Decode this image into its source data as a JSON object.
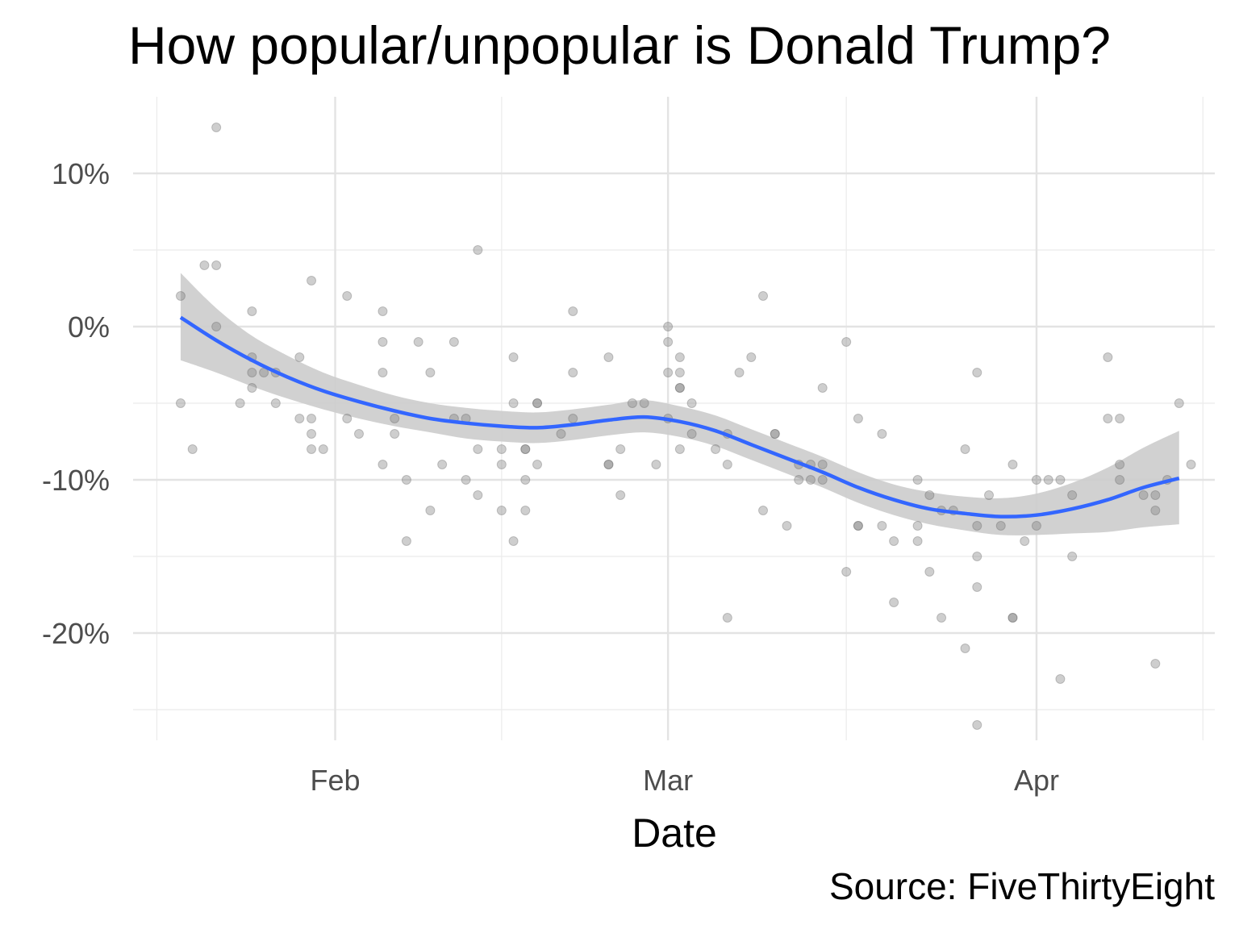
{
  "chart_data": {
    "type": "scatter",
    "title": "How popular/unpopular is Donald Trump?",
    "xlabel": "Date",
    "ylabel": "",
    "caption": "Source: FiveThirtyEight",
    "x_ticks": [
      {
        "label": "Feb",
        "date": "2017-02-01"
      },
      {
        "label": "Mar",
        "date": "2017-03-01"
      },
      {
        "label": "Apr",
        "date": "2017-04-01"
      }
    ],
    "x_minor_ticks": [
      "2017-01-17",
      "2017-02-15",
      "2017-03-16",
      "2017-04-15"
    ],
    "y_ticks": [
      {
        "label": "10%",
        "value": 10
      },
      {
        "label": "0%",
        "value": 0
      },
      {
        "label": "-10%",
        "value": -10
      },
      {
        "label": "-20%",
        "value": -20
      }
    ],
    "y_minor_ticks": [
      5,
      -5,
      -15,
      -25
    ],
    "xlim": [
      "2017-01-15",
      "2017-04-16"
    ],
    "ylim": [
      -27,
      15
    ],
    "grid": true,
    "point_color": "#7f7f7f",
    "smooth_color": "#3366ff",
    "ribbon_color": "#cccccc",
    "series": [
      {
        "kind": "points",
        "points": [
          {
            "x": "2017-01-19",
            "y": 2
          },
          {
            "x": "2017-01-19",
            "y": -5
          },
          {
            "x": "2017-01-20",
            "y": -8
          },
          {
            "x": "2017-01-21",
            "y": 4
          },
          {
            "x": "2017-01-22",
            "y": 13
          },
          {
            "x": "2017-01-22",
            "y": 4
          },
          {
            "x": "2017-01-22",
            "y": 0
          },
          {
            "x": "2017-01-24",
            "y": -5
          },
          {
            "x": "2017-01-25",
            "y": 1
          },
          {
            "x": "2017-01-25",
            "y": -2
          },
          {
            "x": "2017-01-25",
            "y": -3
          },
          {
            "x": "2017-01-25",
            "y": -4
          },
          {
            "x": "2017-01-26",
            "y": -3
          },
          {
            "x": "2017-01-27",
            "y": -3
          },
          {
            "x": "2017-01-27",
            "y": -5
          },
          {
            "x": "2017-01-29",
            "y": -2
          },
          {
            "x": "2017-01-29",
            "y": -6
          },
          {
            "x": "2017-01-30",
            "y": 3
          },
          {
            "x": "2017-01-30",
            "y": -6
          },
          {
            "x": "2017-01-30",
            "y": -7
          },
          {
            "x": "2017-01-30",
            "y": -8
          },
          {
            "x": "2017-01-31",
            "y": -8
          },
          {
            "x": "2017-02-02",
            "y": 2
          },
          {
            "x": "2017-02-02",
            "y": -6
          },
          {
            "x": "2017-02-03",
            "y": -7
          },
          {
            "x": "2017-02-05",
            "y": 1
          },
          {
            "x": "2017-02-05",
            "y": -1
          },
          {
            "x": "2017-02-05",
            "y": -3
          },
          {
            "x": "2017-02-05",
            "y": -9
          },
          {
            "x": "2017-02-06",
            "y": -6
          },
          {
            "x": "2017-02-06",
            "y": -7
          },
          {
            "x": "2017-02-07",
            "y": -10
          },
          {
            "x": "2017-02-07",
            "y": -14
          },
          {
            "x": "2017-02-08",
            "y": -1
          },
          {
            "x": "2017-02-09",
            "y": -3
          },
          {
            "x": "2017-02-09",
            "y": -12
          },
          {
            "x": "2017-02-10",
            "y": -9
          },
          {
            "x": "2017-02-11",
            "y": -1
          },
          {
            "x": "2017-02-11",
            "y": -6
          },
          {
            "x": "2017-02-12",
            "y": -6
          },
          {
            "x": "2017-02-12",
            "y": -10
          },
          {
            "x": "2017-02-13",
            "y": 5
          },
          {
            "x": "2017-02-13",
            "y": -8
          },
          {
            "x": "2017-02-13",
            "y": -11
          },
          {
            "x": "2017-02-15",
            "y": -8
          },
          {
            "x": "2017-02-15",
            "y": -9
          },
          {
            "x": "2017-02-15",
            "y": -12
          },
          {
            "x": "2017-02-16",
            "y": -2
          },
          {
            "x": "2017-02-16",
            "y": -5
          },
          {
            "x": "2017-02-16",
            "y": -14
          },
          {
            "x": "2017-02-17",
            "y": -8
          },
          {
            "x": "2017-02-17",
            "y": -8
          },
          {
            "x": "2017-02-17",
            "y": -10
          },
          {
            "x": "2017-02-17",
            "y": -12
          },
          {
            "x": "2017-02-18",
            "y": -5
          },
          {
            "x": "2017-02-18",
            "y": -5
          },
          {
            "x": "2017-02-18",
            "y": -9
          },
          {
            "x": "2017-02-20",
            "y": -7
          },
          {
            "x": "2017-02-21",
            "y": 1
          },
          {
            "x": "2017-02-21",
            "y": -3
          },
          {
            "x": "2017-02-21",
            "y": -6
          },
          {
            "x": "2017-02-24",
            "y": -2
          },
          {
            "x": "2017-02-24",
            "y": -9
          },
          {
            "x": "2017-02-24",
            "y": -9
          },
          {
            "x": "2017-02-25",
            "y": -8
          },
          {
            "x": "2017-02-25",
            "y": -11
          },
          {
            "x": "2017-02-26",
            "y": -5
          },
          {
            "x": "2017-02-27",
            "y": -5
          },
          {
            "x": "2017-02-28",
            "y": -9
          },
          {
            "x": "2017-03-01",
            "y": 0
          },
          {
            "x": "2017-03-01",
            "y": -1
          },
          {
            "x": "2017-03-01",
            "y": -3
          },
          {
            "x": "2017-03-01",
            "y": -6
          },
          {
            "x": "2017-03-02",
            "y": -2
          },
          {
            "x": "2017-03-02",
            "y": -3
          },
          {
            "x": "2017-03-02",
            "y": -4
          },
          {
            "x": "2017-03-02",
            "y": -4
          },
          {
            "x": "2017-03-02",
            "y": -8
          },
          {
            "x": "2017-03-03",
            "y": -5
          },
          {
            "x": "2017-03-03",
            "y": -7
          },
          {
            "x": "2017-03-05",
            "y": -8
          },
          {
            "x": "2017-03-06",
            "y": -7
          },
          {
            "x": "2017-03-06",
            "y": -9
          },
          {
            "x": "2017-03-06",
            "y": -19
          },
          {
            "x": "2017-03-07",
            "y": -3
          },
          {
            "x": "2017-03-08",
            "y": -2
          },
          {
            "x": "2017-03-09",
            "y": 2
          },
          {
            "x": "2017-03-09",
            "y": -12
          },
          {
            "x": "2017-03-10",
            "y": -7
          },
          {
            "x": "2017-03-10",
            "y": -7
          },
          {
            "x": "2017-03-11",
            "y": -13
          },
          {
            "x": "2017-03-12",
            "y": -9
          },
          {
            "x": "2017-03-12",
            "y": -10
          },
          {
            "x": "2017-03-13",
            "y": -9
          },
          {
            "x": "2017-03-13",
            "y": -10
          },
          {
            "x": "2017-03-14",
            "y": -4
          },
          {
            "x": "2017-03-14",
            "y": -9
          },
          {
            "x": "2017-03-14",
            "y": -10
          },
          {
            "x": "2017-03-16",
            "y": -1
          },
          {
            "x": "2017-03-16",
            "y": -16
          },
          {
            "x": "2017-03-17",
            "y": -6
          },
          {
            "x": "2017-03-17",
            "y": -13
          },
          {
            "x": "2017-03-17",
            "y": -13
          },
          {
            "x": "2017-03-19",
            "y": -7
          },
          {
            "x": "2017-03-19",
            "y": -13
          },
          {
            "x": "2017-03-20",
            "y": -14
          },
          {
            "x": "2017-03-20",
            "y": -18
          },
          {
            "x": "2017-03-22",
            "y": -10
          },
          {
            "x": "2017-03-22",
            "y": -13
          },
          {
            "x": "2017-03-22",
            "y": -14
          },
          {
            "x": "2017-03-23",
            "y": -11
          },
          {
            "x": "2017-03-23",
            "y": -16
          },
          {
            "x": "2017-03-24",
            "y": -12
          },
          {
            "x": "2017-03-24",
            "y": -19
          },
          {
            "x": "2017-03-25",
            "y": -12
          },
          {
            "x": "2017-03-26",
            "y": -8
          },
          {
            "x": "2017-03-26",
            "y": -21
          },
          {
            "x": "2017-03-27",
            "y": -3
          },
          {
            "x": "2017-03-27",
            "y": -13
          },
          {
            "x": "2017-03-27",
            "y": -15
          },
          {
            "x": "2017-03-27",
            "y": -17
          },
          {
            "x": "2017-03-27",
            "y": -26
          },
          {
            "x": "2017-03-28",
            "y": -11
          },
          {
            "x": "2017-03-29",
            "y": -13
          },
          {
            "x": "2017-03-30",
            "y": -9
          },
          {
            "x": "2017-03-30",
            "y": -19
          },
          {
            "x": "2017-03-30",
            "y": -19
          },
          {
            "x": "2017-03-31",
            "y": -14
          },
          {
            "x": "2017-04-01",
            "y": -10
          },
          {
            "x": "2017-04-01",
            "y": -13
          },
          {
            "x": "2017-04-02",
            "y": -10
          },
          {
            "x": "2017-04-03",
            "y": -10
          },
          {
            "x": "2017-04-03",
            "y": -23
          },
          {
            "x": "2017-04-04",
            "y": -11
          },
          {
            "x": "2017-04-04",
            "y": -15
          },
          {
            "x": "2017-04-07",
            "y": -2
          },
          {
            "x": "2017-04-07",
            "y": -6
          },
          {
            "x": "2017-04-08",
            "y": -6
          },
          {
            "x": "2017-04-08",
            "y": -9
          },
          {
            "x": "2017-04-08",
            "y": -10
          },
          {
            "x": "2017-04-10",
            "y": -11
          },
          {
            "x": "2017-04-11",
            "y": -11
          },
          {
            "x": "2017-04-11",
            "y": -12
          },
          {
            "x": "2017-04-11",
            "y": -22
          },
          {
            "x": "2017-04-12",
            "y": -10
          },
          {
            "x": "2017-04-13",
            "y": -5
          },
          {
            "x": "2017-04-14",
            "y": -9
          }
        ]
      },
      {
        "kind": "smooth",
        "points": [
          {
            "x": "2017-01-19",
            "y": 0.6,
            "lo": -2.2,
            "hi": 3.5
          },
          {
            "x": "2017-01-22",
            "y": -0.9,
            "lo": -3.0,
            "hi": 1.2
          },
          {
            "x": "2017-01-25",
            "y": -2.2,
            "lo": -3.9,
            "hi": -0.6
          },
          {
            "x": "2017-01-28",
            "y": -3.3,
            "lo": -4.7,
            "hi": -1.9
          },
          {
            "x": "2017-01-31",
            "y": -4.2,
            "lo": -5.4,
            "hi": -3.0
          },
          {
            "x": "2017-02-03",
            "y": -4.9,
            "lo": -6.0,
            "hi": -3.8
          },
          {
            "x": "2017-02-06",
            "y": -5.5,
            "lo": -6.5,
            "hi": -4.5
          },
          {
            "x": "2017-02-09",
            "y": -6.0,
            "lo": -6.9,
            "hi": -5.0
          },
          {
            "x": "2017-02-12",
            "y": -6.3,
            "lo": -7.3,
            "hi": -5.3
          },
          {
            "x": "2017-02-15",
            "y": -6.5,
            "lo": -7.5,
            "hi": -5.5
          },
          {
            "x": "2017-02-18",
            "y": -6.6,
            "lo": -7.6,
            "hi": -5.6
          },
          {
            "x": "2017-02-21",
            "y": -6.4,
            "lo": -7.4,
            "hi": -5.4
          },
          {
            "x": "2017-02-24",
            "y": -6.1,
            "lo": -7.1,
            "hi": -5.1
          },
          {
            "x": "2017-02-27",
            "y": -5.9,
            "lo": -6.9,
            "hi": -4.8
          },
          {
            "x": "2017-03-02",
            "y": -6.2,
            "lo": -7.2,
            "hi": -5.2
          },
          {
            "x": "2017-03-05",
            "y": -6.8,
            "lo": -7.8,
            "hi": -5.8
          },
          {
            "x": "2017-03-08",
            "y": -7.7,
            "lo": -8.7,
            "hi": -6.7
          },
          {
            "x": "2017-03-11",
            "y": -8.6,
            "lo": -9.6,
            "hi": -7.6
          },
          {
            "x": "2017-03-14",
            "y": -9.5,
            "lo": -10.5,
            "hi": -8.5
          },
          {
            "x": "2017-03-17",
            "y": -10.5,
            "lo": -11.5,
            "hi": -9.5
          },
          {
            "x": "2017-03-20",
            "y": -11.3,
            "lo": -12.3,
            "hi": -10.3
          },
          {
            "x": "2017-03-23",
            "y": -11.9,
            "lo": -12.9,
            "hi": -10.8
          },
          {
            "x": "2017-03-26",
            "y": -12.2,
            "lo": -13.3,
            "hi": -11.1
          },
          {
            "x": "2017-03-29",
            "y": -12.4,
            "lo": -13.6,
            "hi": -11.2
          },
          {
            "x": "2017-04-01",
            "y": -12.3,
            "lo": -13.6,
            "hi": -10.9
          },
          {
            "x": "2017-04-04",
            "y": -11.9,
            "lo": -13.5,
            "hi": -10.2
          },
          {
            "x": "2017-04-07",
            "y": -11.3,
            "lo": -13.4,
            "hi": -9.2
          },
          {
            "x": "2017-04-10",
            "y": -10.5,
            "lo": -13.1,
            "hi": -7.9
          },
          {
            "x": "2017-04-13",
            "y": -9.9,
            "lo": -12.9,
            "hi": -6.8
          }
        ]
      }
    ]
  }
}
